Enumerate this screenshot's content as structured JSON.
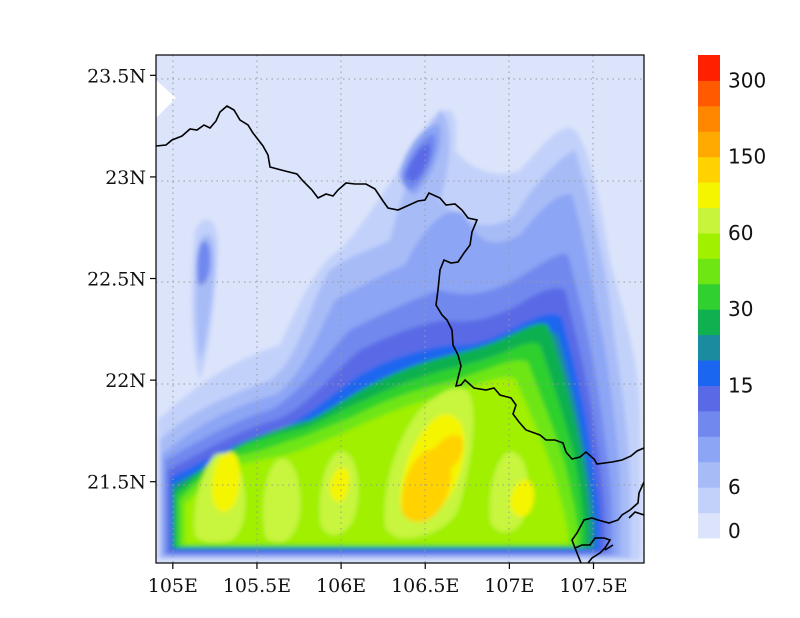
{
  "map": {
    "x_axis": {
      "ticks": [
        {
          "value": 105.0,
          "label": "105E"
        },
        {
          "value": 105.5,
          "label": "105.5E"
        },
        {
          "value": 106.0,
          "label": "106E"
        },
        {
          "value": 106.5,
          "label": "106.5E"
        },
        {
          "value": 107.0,
          "label": "107E"
        },
        {
          "value": 107.5,
          "label": "107.5E"
        }
      ],
      "range": [
        104.9,
        107.8
      ]
    },
    "y_axis": {
      "ticks": [
        {
          "value": 21.5,
          "label": "21.5N"
        },
        {
          "value": 22.0,
          "label": "22N"
        },
        {
          "value": 22.5,
          "label": "22.5N"
        },
        {
          "value": 23.0,
          "label": "23N"
        },
        {
          "value": 23.5,
          "label": "23.5N"
        }
      ],
      "range": [
        21.1,
        23.6
      ]
    },
    "grid": "dotted",
    "border": "national boundary line",
    "colorbar": {
      "placement": "right",
      "colors": [
        "#dce4fb",
        "#c2d1fa",
        "#a7bbf7",
        "#8ca5f4",
        "#7189ef",
        "#5a6ae6",
        "#1a66f0",
        "#1a8ca0",
        "#10b050",
        "#2fd02f",
        "#6ee614",
        "#a0f000",
        "#c8f53c",
        "#f5f500",
        "#ffd200",
        "#ffaa00",
        "#ff8700",
        "#ff5a00",
        "#ff2000"
      ],
      "labels": [
        {
          "index": 0,
          "text": "0"
        },
        {
          "index": 2,
          "text": "6"
        },
        {
          "index": 6,
          "text": "15"
        },
        {
          "index": 9,
          "text": "30"
        },
        {
          "index": 12,
          "text": "60"
        },
        {
          "index": 15,
          "text": "150"
        },
        {
          "index": 18,
          "text": "300"
        }
      ]
    }
  }
}
